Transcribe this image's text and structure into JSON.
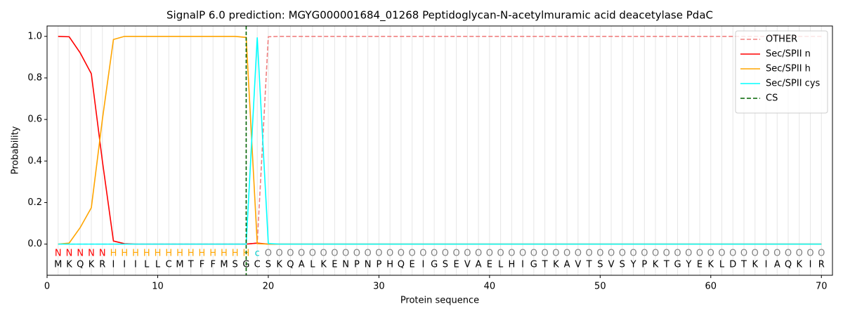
{
  "chart_data": {
    "type": "line",
    "title": "SignalP 6.0 prediction: MGYG000001684_01268 Peptidoglycan-N-acetylmuramic acid deacetylase PdaC",
    "x_label": "Protein sequence",
    "y_label": "Probability",
    "x": [
      1,
      2,
      3,
      4,
      5,
      6,
      7,
      8,
      9,
      10,
      11,
      12,
      13,
      14,
      15,
      16,
      17,
      18,
      19,
      20,
      21,
      22,
      23,
      24,
      25,
      26,
      27,
      28,
      29,
      30,
      31,
      32,
      33,
      34,
      35,
      36,
      37,
      38,
      39,
      40,
      41,
      42,
      43,
      44,
      45,
      46,
      47,
      48,
      49,
      50,
      51,
      52,
      53,
      54,
      55,
      56,
      57,
      58,
      59,
      60,
      61,
      62,
      63,
      64,
      65,
      66,
      67,
      68,
      69,
      70
    ],
    "series": [
      {
        "name": "OTHER",
        "color": "#f08080",
        "dashed": true,
        "values": [
          0,
          0,
          0,
          0,
          0,
          0,
          0,
          0,
          0,
          0,
          0,
          0,
          0,
          0,
          0,
          0,
          0,
          0,
          0.005,
          0.998,
          1,
          1,
          1,
          1,
          1,
          1,
          1,
          1,
          1,
          1,
          1,
          1,
          1,
          1,
          1,
          1,
          1,
          1,
          1,
          1,
          1,
          1,
          1,
          1,
          1,
          1,
          1,
          1,
          1,
          1,
          1,
          1,
          1,
          1,
          1,
          1,
          1,
          1,
          1,
          1,
          1,
          1,
          1,
          1,
          1,
          1,
          1,
          1,
          1,
          1
        ]
      },
      {
        "name": "Sec/SPII n",
        "color": "#ff0000",
        "dashed": false,
        "values": [
          1,
          0.998,
          0.92,
          0.82,
          0.4,
          0.015,
          0.002,
          0,
          0,
          0,
          0,
          0,
          0,
          0,
          0,
          0,
          0,
          0,
          0.005,
          0,
          0,
          0,
          0,
          0,
          0,
          0,
          0,
          0,
          0,
          0,
          0,
          0,
          0,
          0,
          0,
          0,
          0,
          0,
          0,
          0,
          0,
          0,
          0,
          0,
          0,
          0,
          0,
          0,
          0,
          0,
          0,
          0,
          0,
          0,
          0,
          0,
          0,
          0,
          0,
          0,
          0,
          0,
          0,
          0,
          0,
          0,
          0,
          0,
          0,
          0
        ]
      },
      {
        "name": "Sec/SPII h",
        "color": "#ffa500",
        "dashed": false,
        "values": [
          0,
          0.005,
          0.08,
          0.175,
          0.6,
          0.985,
          1,
          1,
          1,
          1,
          1,
          1,
          1,
          1,
          1,
          1,
          1,
          0.995,
          0.002,
          0,
          0,
          0,
          0,
          0,
          0,
          0,
          0,
          0,
          0,
          0,
          0,
          0,
          0,
          0,
          0,
          0,
          0,
          0,
          0,
          0,
          0,
          0,
          0,
          0,
          0,
          0,
          0,
          0,
          0,
          0,
          0,
          0,
          0,
          0,
          0,
          0,
          0,
          0,
          0,
          0,
          0,
          0,
          0,
          0,
          0,
          0,
          0,
          0,
          0,
          0
        ]
      },
      {
        "name": "Sec/SPII cys",
        "color": "#00ffff",
        "dashed": false,
        "values": [
          0,
          0,
          0,
          0,
          0,
          0,
          0,
          0,
          0,
          0,
          0,
          0,
          0,
          0,
          0,
          0,
          0,
          0,
          0.995,
          0.003,
          0,
          0,
          0,
          0,
          0,
          0,
          0,
          0,
          0,
          0,
          0,
          0,
          0,
          0,
          0,
          0,
          0,
          0,
          0,
          0,
          0,
          0,
          0,
          0,
          0,
          0,
          0,
          0,
          0,
          0,
          0,
          0,
          0,
          0,
          0,
          0,
          0,
          0,
          0,
          0,
          0,
          0,
          0,
          0,
          0,
          0,
          0,
          0,
          0,
          0
        ]
      }
    ],
    "cleavage_site": {
      "name": "CS",
      "x": 18,
      "color": "#006400"
    },
    "sequence": [
      "M",
      "K",
      "Q",
      "K",
      "R",
      "I",
      "I",
      "I",
      "L",
      "L",
      "C",
      "M",
      "T",
      "F",
      "F",
      "M",
      "S",
      "G",
      "C",
      "S",
      "K",
      "Q",
      "A",
      "L",
      "K",
      "E",
      "N",
      "P",
      "N",
      "P",
      "H",
      "Q",
      "E",
      "I",
      "G",
      "S",
      "E",
      "V",
      "A",
      "E",
      "L",
      "H",
      "I",
      "G",
      "T",
      "K",
      "A",
      "V",
      "T",
      "S",
      "V",
      "S",
      "Y",
      "P",
      "K",
      "T",
      "G",
      "Y",
      "E",
      "K",
      "L",
      "D",
      "T",
      "K",
      "I",
      "A",
      "Q",
      "K",
      "I",
      "R"
    ],
    "region_labels": [
      "N",
      "N",
      "N",
      "N",
      "N",
      "H",
      "H",
      "H",
      "H",
      "H",
      "H",
      "H",
      "H",
      "H",
      "H",
      "H",
      "H",
      "H",
      "c",
      "O",
      "O",
      "O",
      "O",
      "O",
      "O",
      "O",
      "O",
      "O",
      "O",
      "O",
      "O",
      "O",
      "O",
      "O",
      "O",
      "O",
      "O",
      "O",
      "O",
      "O",
      "O",
      "O",
      "O",
      "O",
      "O",
      "O",
      "O",
      "O",
      "O",
      "O",
      "O",
      "O",
      "O",
      "O",
      "O",
      "O",
      "O",
      "O",
      "O",
      "O",
      "O",
      "O",
      "O",
      "O",
      "O",
      "O",
      "O",
      "O",
      "O",
      "O"
    ],
    "region_colors": {
      "N": "#ff0000",
      "H": "#ffa500",
      "c": "#00cccc",
      "O": "#808080"
    },
    "xlim": [
      0,
      71
    ],
    "ylim": [
      -0.15,
      1.05
    ],
    "xticks": [
      0,
      10,
      20,
      30,
      40,
      50,
      60,
      70
    ],
    "yticks": [
      {
        "value": 0,
        "label": "0.0"
      },
      0.2,
      0.4,
      0.6,
      0.8,
      {
        "value": 1,
        "label": "1.0"
      }
    ],
    "grid": true,
    "legend": "upper right"
  }
}
